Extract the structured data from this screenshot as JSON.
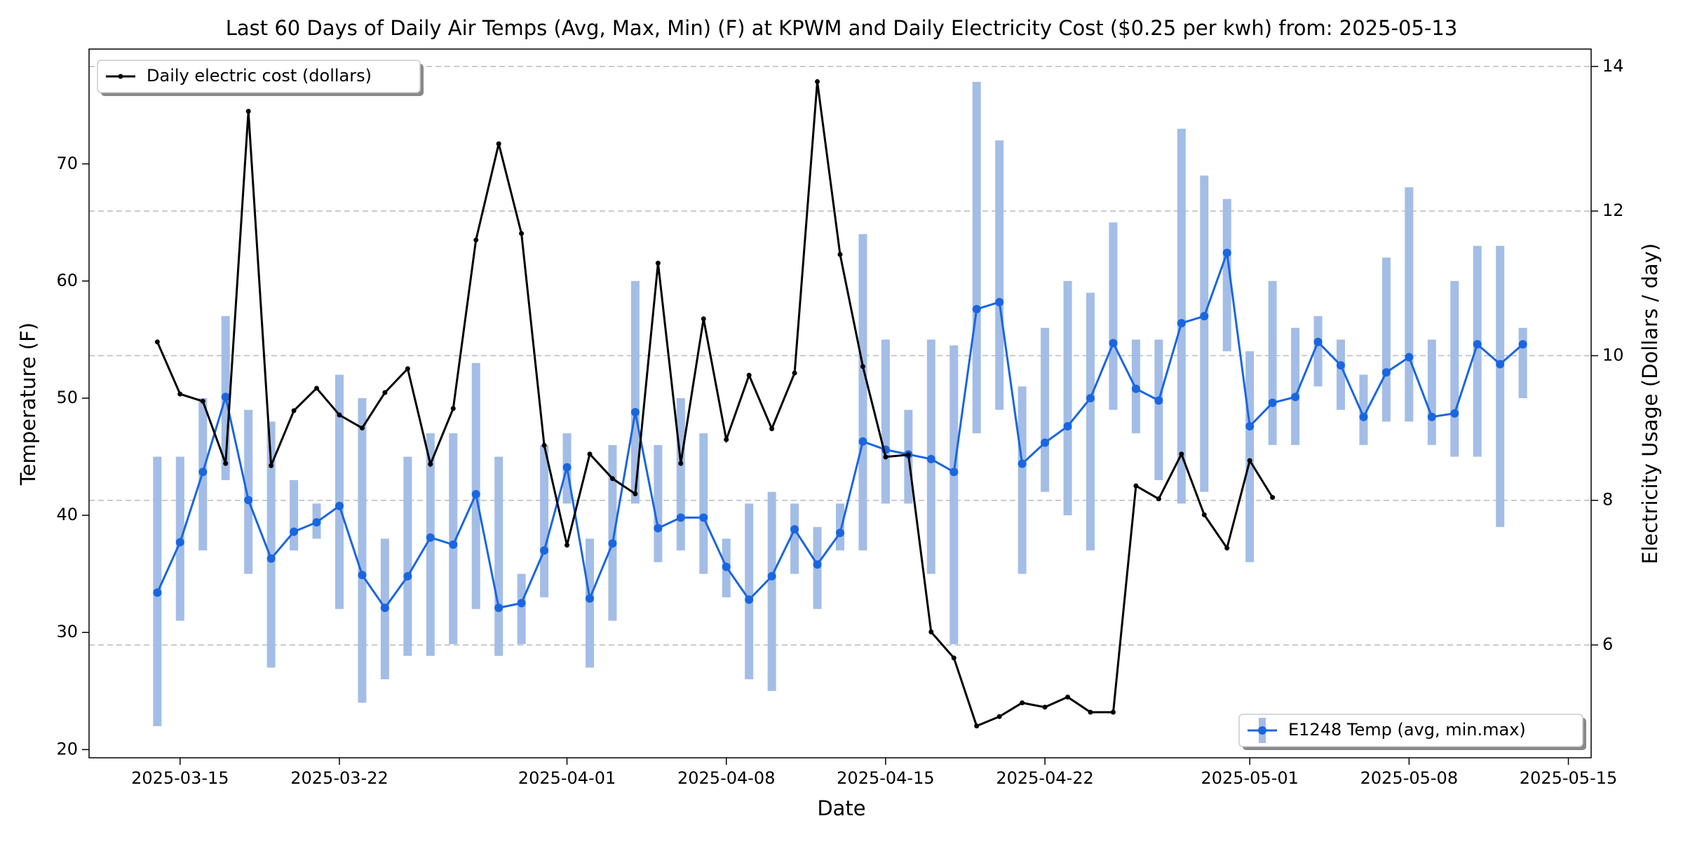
{
  "chart_data": {
    "type": "line",
    "title": "Last 60 Days of Daily Air Temps (Avg, Max, Min) (F) at KPWM and Daily Electricity Cost ($0.25 per kwh) from: 2025-05-13",
    "xlabel": "Date",
    "ylabel": "Temperature (F)",
    "y2label": "Electricity Usage (Dollars / day)",
    "x": [
      "2025-03-14",
      "2025-03-15",
      "2025-03-16",
      "2025-03-17",
      "2025-03-18",
      "2025-03-19",
      "2025-03-20",
      "2025-03-21",
      "2025-03-22",
      "2025-03-23",
      "2025-03-24",
      "2025-03-25",
      "2025-03-26",
      "2025-03-27",
      "2025-03-28",
      "2025-03-29",
      "2025-03-30",
      "2025-03-31",
      "2025-04-01",
      "2025-04-02",
      "2025-04-03",
      "2025-04-04",
      "2025-04-05",
      "2025-04-06",
      "2025-04-07",
      "2025-04-08",
      "2025-04-09",
      "2025-04-10",
      "2025-04-11",
      "2025-04-12",
      "2025-04-13",
      "2025-04-14",
      "2025-04-15",
      "2025-04-16",
      "2025-04-17",
      "2025-04-18",
      "2025-04-19",
      "2025-04-20",
      "2025-04-21",
      "2025-04-22",
      "2025-04-23",
      "2025-04-24",
      "2025-04-25",
      "2025-04-26",
      "2025-04-27",
      "2025-04-28",
      "2025-04-29",
      "2025-04-30",
      "2025-05-01",
      "2025-05-02",
      "2025-05-03",
      "2025-05-04",
      "2025-05-05",
      "2025-05-06",
      "2025-05-07",
      "2025-05-08",
      "2025-05-09",
      "2025-05-10",
      "2025-05-11",
      "2025-05-12",
      "2025-05-13"
    ],
    "xlim": [
      "2025-03-11",
      "2025-05-16"
    ],
    "xticks": [
      "2025-03-15",
      "2025-03-22",
      "2025-04-01",
      "2025-04-08",
      "2025-04-15",
      "2025-04-22",
      "2025-05-01",
      "2025-05-08",
      "2025-05-15"
    ],
    "ylim": [
      19.3,
      79.8
    ],
    "yticks": [
      20,
      30,
      40,
      50,
      60,
      70
    ],
    "y2lim": [
      4.44,
      14.24
    ],
    "y2ticks": [
      6,
      8,
      10,
      12,
      14
    ],
    "grid": "y2",
    "series": [
      {
        "name": "E1248 Temp (avg, min.max)",
        "color": "#1a66e0",
        "bar_color": "#a3bde6",
        "legend": "lower right",
        "values": [
          33.4,
          37.7,
          43.7,
          50.1,
          41.3,
          36.3,
          38.6,
          39.4,
          40.8,
          34.9,
          32.1,
          34.8,
          38.1,
          37.5,
          41.8,
          32.1,
          32.5,
          37.0,
          44.1,
          32.9,
          37.6,
          48.8,
          38.9,
          39.8,
          39.8,
          35.6,
          32.8,
          34.8,
          38.8,
          35.8,
          38.5,
          46.3,
          45.6,
          45.2,
          44.8,
          43.7,
          57.6,
          58.2,
          44.4,
          46.2,
          47.6,
          50.0,
          54.7,
          50.8,
          49.8,
          56.4,
          57.0,
          62.4,
          47.6,
          49.6,
          50.1,
          54.8,
          52.8,
          48.4,
          52.2,
          53.5,
          48.4,
          48.7,
          54.6,
          52.9,
          54.6
        ],
        "max": [
          45,
          45,
          50,
          57,
          49,
          48,
          43,
          41,
          52,
          50,
          38,
          45,
          47,
          47,
          53,
          45,
          35,
          46,
          47,
          38,
          46,
          60,
          46,
          50,
          47,
          38,
          41,
          42,
          41,
          39,
          41,
          64,
          55,
          49,
          55,
          54.5,
          77,
          72,
          51,
          56,
          60,
          59,
          65,
          55,
          55,
          73,
          69,
          67,
          54,
          60,
          56,
          57,
          55,
          52,
          62,
          68,
          55,
          60,
          63,
          63,
          56
        ],
        "min": [
          22,
          31,
          37,
          43,
          35,
          27,
          37,
          38,
          32,
          24,
          26,
          28,
          28,
          29,
          32,
          28,
          29,
          33,
          41,
          27,
          31,
          41,
          36,
          37,
          35,
          33,
          26,
          25,
          35,
          32,
          37,
          37,
          41,
          41,
          35,
          29,
          47,
          49,
          35,
          42,
          40,
          37,
          49,
          47,
          43,
          41,
          42,
          54,
          36,
          46,
          46,
          51,
          49,
          46,
          48,
          48,
          46,
          45,
          45,
          39,
          50
        ]
      },
      {
        "name": "Daily electric cost (dollars)",
        "color": "#000000",
        "axis": "y2",
        "legend": "upper left",
        "values": [
          10.19,
          9.47,
          9.37,
          8.51,
          13.38,
          8.48,
          9.24,
          9.55,
          9.18,
          9.0,
          9.49,
          9.82,
          8.5,
          9.27,
          11.6,
          12.93,
          11.69,
          8.76,
          7.38,
          8.64,
          8.3,
          8.09,
          11.28,
          8.51,
          10.51,
          8.84,
          9.73,
          8.99,
          9.76,
          13.79,
          11.4,
          9.85,
          8.6,
          8.63,
          6.18,
          5.82,
          4.88,
          5.01,
          5.2,
          5.14,
          5.28,
          5.07,
          5.07,
          8.2,
          8.02,
          8.64,
          7.8,
          7.34,
          8.55,
          8.04,
          null,
          null,
          null,
          null,
          null,
          null,
          null,
          null,
          null,
          null,
          null
        ]
      }
    ]
  }
}
